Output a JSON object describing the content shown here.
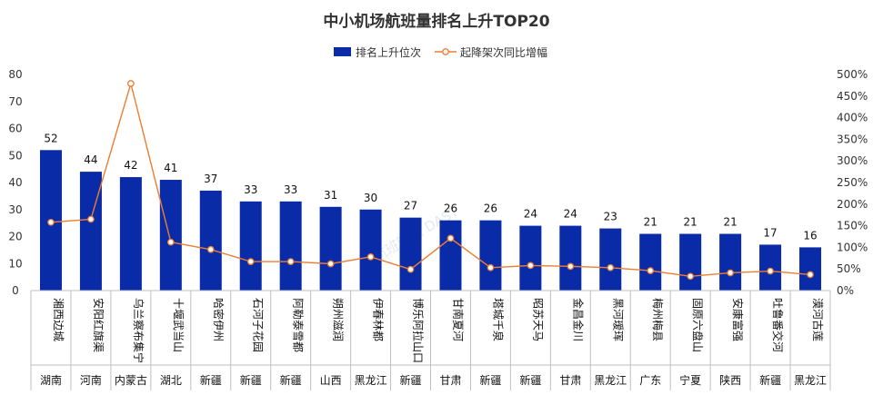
{
  "chart_data": {
    "type": "bar+line",
    "title": "中小机场航班量排名上升TOP20",
    "legend": [
      "排名上升位次",
      "起降架次同比增幅"
    ],
    "legend_position": "top",
    "categories": [
      "湘西边城",
      "安阳红旗渠",
      "乌兰察布集宁",
      "十堰武当山",
      "哈密伊州",
      "石河子花园",
      "阿勒泰雪都",
      "朔州滋润",
      "伊春林都",
      "博乐阿拉山口",
      "甘南夏河",
      "塔城千泉",
      "昭苏天马",
      "金昌金川",
      "黑河瑷珲",
      "梅州梅县",
      "固原六盘山",
      "安康富强",
      "吐鲁番交河",
      "漠河古莲"
    ],
    "regions": [
      "湖南",
      "河南",
      "内蒙古",
      "湖北",
      "新疆",
      "新疆",
      "新疆",
      "山西",
      "黑龙江",
      "新疆",
      "甘肃",
      "新疆",
      "新疆",
      "甘肃",
      "黑龙江",
      "广东",
      "宁夏",
      "陕西",
      "新疆",
      "黑龙江"
    ],
    "series": [
      {
        "name": "排名上升位次",
        "type": "bar",
        "axis": "left",
        "color": "#0a2ba8",
        "values": [
          52,
          44,
          42,
          41,
          37,
          33,
          33,
          31,
          30,
          27,
          26,
          26,
          24,
          24,
          23,
          21,
          21,
          21,
          17,
          16
        ]
      },
      {
        "name": "起降架次同比增幅",
        "type": "line",
        "axis": "right",
        "color": "#ed7d31",
        "values": [
          158,
          165,
          479,
          112,
          95,
          67,
          67,
          62,
          78,
          49,
          121,
          53,
          58,
          56,
          53,
          46,
          33,
          41,
          45,
          37
        ]
      }
    ],
    "ylim_left": [
      0,
      80
    ],
    "yticks_left": [
      "0",
      "10",
      "20",
      "30",
      "40",
      "50",
      "60",
      "70",
      "80"
    ],
    "ylim_right": [
      0,
      500
    ],
    "yticks_right": [
      "0%",
      "50%",
      "100%",
      "150%",
      "200%",
      "250%",
      "300%",
      "350%",
      "400%",
      "450%",
      "500%"
    ],
    "grid": false
  },
  "watermark": "航班管家 DAST",
  "colors": {
    "bar": "#0a2ba8",
    "line": "#ed7d31",
    "axis": "#bfbfbf"
  }
}
